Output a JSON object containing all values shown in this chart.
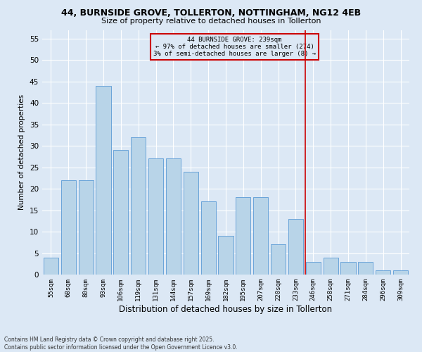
{
  "title_line1": "44, BURNSIDE GROVE, TOLLERTON, NOTTINGHAM, NG12 4EB",
  "title_line2": "Size of property relative to detached houses in Tollerton",
  "xlabel": "Distribution of detached houses by size in Tollerton",
  "ylabel": "Number of detached properties",
  "categories": [
    "55sqm",
    "68sqm",
    "80sqm",
    "93sqm",
    "106sqm",
    "119sqm",
    "131sqm",
    "144sqm",
    "157sqm",
    "169sqm",
    "182sqm",
    "195sqm",
    "207sqm",
    "220sqm",
    "233sqm",
    "246sqm",
    "258sqm",
    "271sqm",
    "284sqm",
    "296sqm",
    "309sqm"
  ],
  "values": [
    4,
    22,
    22,
    44,
    29,
    32,
    27,
    27,
    24,
    17,
    9,
    18,
    18,
    7,
    13,
    3,
    4,
    3,
    3,
    1,
    1
  ],
  "bar_color": "#b8d4e8",
  "bar_edge_color": "#5b9bd5",
  "background_color": "#dce8f5",
  "vline_x": 14.54,
  "vline_color": "#cc0000",
  "annotation_text": "44 BURNSIDE GROVE: 239sqm\n← 97% of detached houses are smaller (274)\n3% of semi-detached houses are larger (8) →",
  "annotation_box_color": "#cc0000",
  "ylim": [
    0,
    57
  ],
  "yticks": [
    0,
    5,
    10,
    15,
    20,
    25,
    30,
    35,
    40,
    45,
    50,
    55
  ],
  "footer_line1": "Contains HM Land Registry data © Crown copyright and database right 2025.",
  "footer_line2": "Contains public sector information licensed under the Open Government Licence v3.0."
}
